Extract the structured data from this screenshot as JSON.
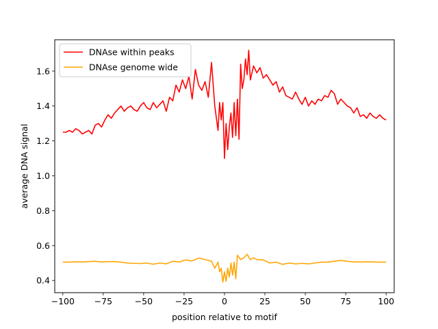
{
  "chart_data": {
    "type": "line",
    "xlabel": "position relative to motif",
    "ylabel": "average DNA signal",
    "xlim": [
      -105,
      105
    ],
    "ylim": [
      0.33,
      1.78
    ],
    "xticks": [
      -100,
      -75,
      -50,
      -25,
      0,
      25,
      50,
      75,
      100
    ],
    "xtick_labels": [
      "−100",
      "−75",
      "−50",
      "−25",
      "0",
      "25",
      "50",
      "75",
      "100"
    ],
    "yticks": [
      0.4,
      0.6,
      0.8,
      1.0,
      1.2,
      1.4,
      1.6
    ],
    "ytick_labels": [
      "0.4",
      "0.6",
      "0.8",
      "1.0",
      "1.2",
      "1.4",
      "1.6"
    ],
    "grid": false,
    "legend_position": "top-left",
    "series": [
      {
        "name": "DNAse within peaks",
        "color": "#ff0000",
        "x": [
          -100,
          -98,
          -96,
          -94,
          -92,
          -90,
          -88,
          -86,
          -84,
          -82,
          -80,
          -78,
          -76,
          -74,
          -72,
          -70,
          -68,
          -66,
          -64,
          -62,
          -60,
          -58,
          -56,
          -54,
          -52,
          -50,
          -48,
          -46,
          -44,
          -42,
          -40,
          -38,
          -36,
          -34,
          -32,
          -30,
          -28,
          -26,
          -24,
          -22,
          -20,
          -18,
          -16,
          -14,
          -12,
          -10,
          -8,
          -6,
          -4,
          -3,
          -2,
          -1,
          0,
          1,
          2,
          3,
          4,
          5,
          6,
          7,
          8,
          9,
          10,
          11,
          12,
          13,
          14,
          15,
          16,
          18,
          20,
          22,
          24,
          26,
          28,
          30,
          32,
          34,
          36,
          38,
          40,
          42,
          44,
          46,
          48,
          50,
          52,
          54,
          56,
          58,
          60,
          62,
          64,
          66,
          68,
          70,
          72,
          74,
          76,
          78,
          80,
          82,
          84,
          86,
          88,
          90,
          92,
          94,
          96,
          98,
          100
        ],
        "y": [
          1.25,
          1.25,
          1.26,
          1.25,
          1.27,
          1.26,
          1.24,
          1.25,
          1.26,
          1.24,
          1.29,
          1.3,
          1.28,
          1.32,
          1.35,
          1.33,
          1.36,
          1.38,
          1.4,
          1.37,
          1.39,
          1.4,
          1.38,
          1.37,
          1.4,
          1.42,
          1.39,
          1.38,
          1.42,
          1.39,
          1.41,
          1.43,
          1.37,
          1.45,
          1.43,
          1.52,
          1.48,
          1.55,
          1.5,
          1.57,
          1.44,
          1.61,
          1.52,
          1.49,
          1.54,
          1.45,
          1.65,
          1.4,
          1.26,
          1.42,
          1.32,
          1.42,
          1.1,
          1.3,
          1.15,
          1.28,
          1.36,
          1.22,
          1.42,
          1.23,
          1.44,
          1.21,
          1.64,
          1.5,
          1.55,
          1.67,
          1.58,
          1.72,
          1.55,
          1.63,
          1.59,
          1.62,
          1.56,
          1.58,
          1.55,
          1.52,
          1.54,
          1.48,
          1.51,
          1.46,
          1.45,
          1.44,
          1.48,
          1.44,
          1.41,
          1.45,
          1.4,
          1.43,
          1.41,
          1.44,
          1.43,
          1.46,
          1.45,
          1.49,
          1.47,
          1.41,
          1.44,
          1.42,
          1.4,
          1.39,
          1.36,
          1.39,
          1.34,
          1.35,
          1.33,
          1.36,
          1.34,
          1.33,
          1.35,
          1.33,
          1.32
        ]
      },
      {
        "name": "DNAse genome wide",
        "color": "#ffa500",
        "x": [
          -100,
          -96,
          -92,
          -88,
          -84,
          -80,
          -76,
          -72,
          -68,
          -64,
          -60,
          -56,
          -52,
          -48,
          -44,
          -40,
          -36,
          -32,
          -28,
          -24,
          -20,
          -16,
          -12,
          -8,
          -6,
          -4,
          -3,
          -2,
          -1,
          0,
          1,
          2,
          3,
          4,
          5,
          6,
          7,
          8,
          10,
          12,
          14,
          16,
          18,
          20,
          24,
          28,
          32,
          36,
          40,
          44,
          48,
          52,
          56,
          60,
          64,
          68,
          72,
          76,
          80,
          84,
          88,
          92,
          96,
          100
        ],
        "y": [
          0.505,
          0.505,
          0.507,
          0.506,
          0.508,
          0.51,
          0.506,
          0.508,
          0.508,
          0.505,
          0.5,
          0.498,
          0.497,
          0.5,
          0.493,
          0.5,
          0.495,
          0.51,
          0.506,
          0.518,
          0.512,
          0.528,
          0.52,
          0.51,
          0.47,
          0.505,
          0.45,
          0.47,
          0.39,
          0.45,
          0.395,
          0.47,
          0.42,
          0.5,
          0.43,
          0.505,
          0.41,
          0.545,
          0.52,
          0.53,
          0.55,
          0.52,
          0.53,
          0.52,
          0.518,
          0.5,
          0.505,
          0.492,
          0.5,
          0.495,
          0.498,
          0.495,
          0.5,
          0.505,
          0.505,
          0.51,
          0.515,
          0.51,
          0.506,
          0.506,
          0.507,
          0.506,
          0.505,
          0.505
        ]
      }
    ]
  }
}
